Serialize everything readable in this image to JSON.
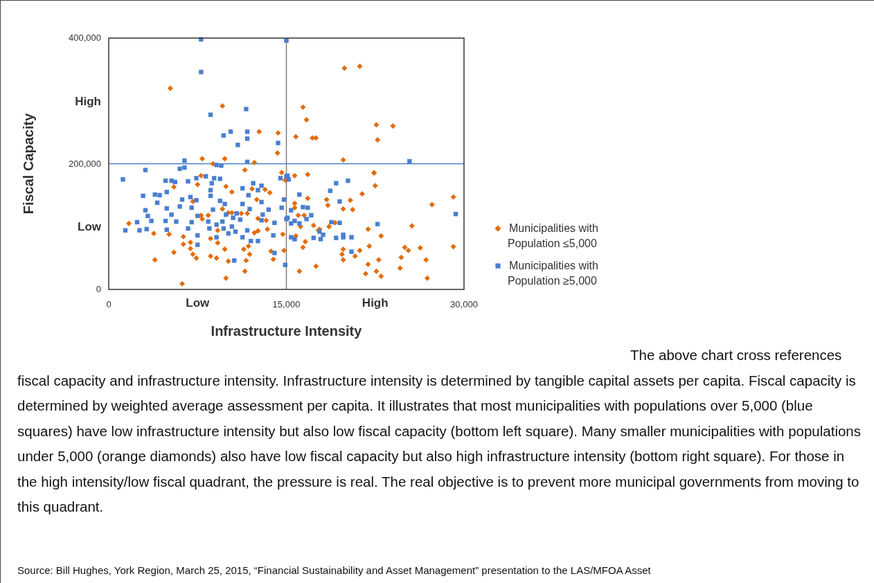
{
  "chart_data": {
    "type": "scatter",
    "xlabel": "Infrastructure Intensity",
    "ylabel": "Fiscal Capacity",
    "xlim": [
      0,
      30000
    ],
    "ylim": [
      0,
      400000
    ],
    "xticks": [
      0,
      {
        "value": 7500,
        "label": "Low"
      },
      {
        "value": 15000,
        "label": "15,000"
      },
      {
        "value": 22500,
        "label": "High"
      },
      {
        "value": 30000,
        "label": "30,000"
      }
    ],
    "yticks": [
      0,
      {
        "value": 100000,
        "label": "Low"
      },
      {
        "value": 200000,
        "label": "200,000"
      },
      {
        "value": 300000,
        "label": "High"
      },
      {
        "value": 400000,
        "label": "400,000"
      }
    ],
    "grid": false,
    "legend": "right",
    "ref_lines": [
      {
        "axis": "x",
        "value": 15000,
        "color": "#7f7f7f"
      },
      {
        "axis": "y",
        "value": 200000,
        "color": "#4a7fcf"
      }
    ],
    "series": [
      {
        "name": "Municipalities with Population ≤5,000",
        "color": "#e36c0a",
        "marker": "diamond",
        "x": [
          5200,
          9600,
          16400,
          16700,
          19900,
          21200,
          22600,
          22700,
          24000,
          14300,
          15800,
          17200,
          17500,
          12700,
          14250,
          7900,
          9800,
          19800,
          22400,
          1700,
          3800,
          5100,
          5500,
          3900,
          5500,
          6200,
          6300,
          6900,
          6900,
          7100,
          7400,
          6300,
          7100,
          7500,
          7800,
          8600,
          9100,
          8600,
          9200,
          9200,
          9800,
          9900,
          10100,
          9600,
          9900,
          10400,
          11500,
          11400,
          11900,
          11600,
          11500,
          11800,
          12300,
          12600,
          12500,
          13200,
          13600,
          13400,
          13700,
          13900,
          14800,
          14700,
          14600,
          14900,
          12300,
          8800,
          7800,
          8400,
          7900,
          10100,
          11700,
          13300,
          12600,
          12100,
          11200,
          10400,
          15700,
          16800,
          15000,
          22400,
          22500,
          21400,
          16800,
          15700,
          15700,
          18400,
          18500,
          20400,
          19800,
          20600,
          16000,
          16500,
          16200,
          17300,
          17800,
          17700,
          18600,
          19100,
          15800,
          16600,
          16400,
          17500,
          16100,
          21900,
          23000,
          25600,
          27300,
          29100,
          29100,
          22000,
          19800,
          19700,
          19800,
          20800,
          21200,
          22800,
          21900,
          21700,
          22600,
          23000,
          24600,
          24700,
          25000,
          25300,
          26300,
          26800,
          26900
        ],
        "values": [
          320000,
          292000,
          290000,
          270000,
          352000,
          355000,
          262000,
          238000,
          260000,
          249000,
          243000,
          241000,
          241000,
          251000,
          217000,
          208000,
          208000,
          206000,
          186000,
          105000,
          89000,
          88000,
          163000,
          47000,
          59000,
          9000,
          72000,
          75000,
          65000,
          56000,
          50000,
          84000,
          140000,
          167000,
          181000,
          53000,
          50000,
          81000,
          94000,
          74000,
          64000,
          18000,
          45000,
          128000,
          164000,
          155000,
          190000,
          64000,
          56000,
          46000,
          29000,
          69000,
          90000,
          93000,
          143000,
          159000,
          154000,
          96000,
          61000,
          48000,
          62000,
          88000,
          186000,
          174000,
          202000,
          200000,
          118000,
          118000,
          112000,
          122000,
          121000,
          110000,
          113000,
          160000,
          121000,
          122000,
          181000,
          183000,
          174000,
          185000,
          165000,
          152000,
          145000,
          137000,
          130000,
          143000,
          134000,
          142000,
          128000,
          127000,
          118000,
          118000,
          100000,
          102000,
          96000,
          94000,
          100000,
          106000,
          85000,
          76000,
          67000,
          37000,
          29000,
          96000,
          85000,
          101000,
          135000,
          147000,
          68000,
          69000,
          64000,
          56000,
          47000,
          53000,
          62000,
          47000,
          40000,
          25000,
          29000,
          21000,
          34000,
          51000,
          67000,
          62000,
          66000,
          47000,
          18000
        ]
      },
      {
        "name": "Municipalities with Population ≥5,000",
        "color": "#4a7fcf",
        "marker": "square",
        "x": [
          7800,
          15000,
          7800,
          8600,
          11600,
          9700,
          10300,
          11700,
          11700,
          10900,
          14300,
          25400,
          6400,
          9100,
          9500,
          6000,
          6400,
          11700,
          1200,
          3100,
          2900,
          1400,
          2400,
          2600,
          3200,
          3100,
          3300,
          3600,
          3900,
          4300,
          4100,
          4800,
          5300,
          5600,
          4900,
          4900,
          4800,
          4900,
          5300,
          5700,
          6200,
          6000,
          6700,
          7400,
          8200,
          6900,
          7400,
          7000,
          7500,
          7000,
          6700,
          7500,
          7500,
          8900,
          9400,
          8700,
          8600,
          8600,
          9400,
          8800,
          8400,
          8500,
          9100,
          9800,
          9900,
          9600,
          9700,
          10100,
          9100,
          10800,
          10500,
          10400,
          11100,
          11300,
          11900,
          11800,
          11300,
          12200,
          12600,
          12900,
          12900,
          13000,
          12900,
          11700,
          11300,
          12000,
          12600,
          13900,
          13500,
          14000,
          14600,
          14800,
          14500,
          15000,
          14900,
          14000,
          10600,
          10700,
          15100,
          15100,
          15200,
          19200,
          20200,
          18700,
          16100,
          19500,
          16400,
          16800,
          15400,
          17100,
          16700,
          15700,
          15400,
          16100,
          15000,
          18800,
          19500,
          22700,
          17800,
          18100,
          17900,
          17300,
          19200,
          19800,
          19800,
          20500,
          15400,
          15700,
          20500,
          29300
        ],
        "values": [
          398000,
          396000,
          346000,
          278000,
          287000,
          245000,
          251000,
          251000,
          240000,
          230000,
          233000,
          204000,
          205000,
          198000,
          197000,
          192000,
          194000,
          203000,
          175000,
          190000,
          149000,
          94000,
          107000,
          94000,
          96000,
          126000,
          117000,
          109000,
          151000,
          150000,
          138000,
          173000,
          173000,
          171000,
          155000,
          129000,
          109000,
          95000,
          119000,
          108000,
          143000,
          132000,
          172000,
          177000,
          180000,
          147000,
          142000,
          130000,
          117000,
          107000,
          97000,
          86000,
          71000,
          177000,
          176000,
          169000,
          158000,
          149000,
          141000,
          127000,
          108000,
          97000,
          103000,
          136000,
          119000,
          108000,
          97000,
          89000,
          83000,
          121000,
          114000,
          100000,
          111000,
          136000,
          128000,
          150000,
          161000,
          169000,
          158000,
          165000,
          139000,
          119000,
          110000,
          94000,
          83000,
          77000,
          77000,
          86000,
          127000,
          106000,
          130000,
          143000,
          177000,
          180000,
          39000,
          58000,
          46000,
          92000,
          114000,
          181000,
          175000,
          169000,
          173000,
          157000,
          151000,
          140000,
          131000,
          130000,
          126000,
          118000,
          112000,
          109000,
          105000,
          105000,
          112000,
          107000,
          106000,
          104000,
          92000,
          87000,
          80000,
          82000,
          82000,
          87000,
          83000,
          83000,
          83000,
          80000,
          60000,
          120000
        ]
      }
    ],
    "annotations": [
      "The above chart cross references fiscal capacity and infrastructure intensity.  Infrastructure intensity is determined by tangible capital assets per capita.  Fiscal capacity is determined by weighted average assessment per capita.  It illustrates that most municipalities with populations over 5,000 (blue squares) have low infrastructure intensity but also low fiscal capacity (bottom left square).  Many smaller municipalities with populations under 5,000 (orange diamonds) also have low fiscal capacity but also high infrastructure intensity (bottom right square).  For those in the high intensity/low fiscal quadrant, the pressure is real.  The real objective is to prevent more municipal governments from moving to this quadrant.",
      "Source: Bill Hughes, York Region, March 25, 2015, “Financial Sustainability and Asset Management” presentation to the LAS/MFOA Asset"
    ]
  }
}
